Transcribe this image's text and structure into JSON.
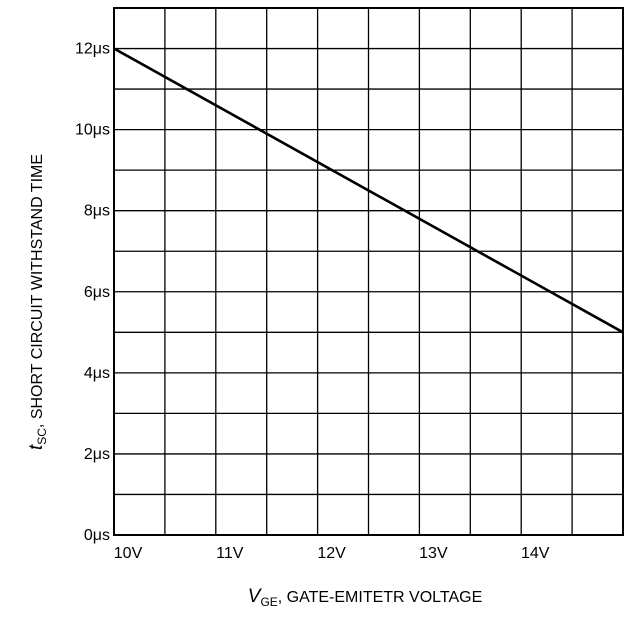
{
  "chart_data": {
    "type": "line",
    "x_tick_labels": [
      "10V",
      "11V",
      "12V",
      "13V",
      "14V"
    ],
    "y_tick_labels": [
      "0μs",
      "2μs",
      "4μs",
      "6μs",
      "8μs",
      "10μs",
      "12μs"
    ],
    "xlabel": {
      "symbol": "V",
      "subscript": "GE",
      "text": ", GATE-EMITETR VOLTAGE"
    },
    "ylabel": {
      "symbol": "t",
      "subscript": "SC",
      "text": ",  SHORT CIRCUIT WITHSTAND TIME"
    },
    "xlim": [
      10,
      15
    ],
    "ylim": [
      0,
      13
    ],
    "x_grid_step": 0.5,
    "y_grid_step": 1,
    "x_tick_values": [
      10,
      11,
      12,
      13,
      14
    ],
    "y_tick_values": [
      0,
      2,
      4,
      6,
      8,
      10,
      12
    ],
    "grid": true,
    "line_color": "#000000",
    "series": [
      {
        "x": [
          10,
          15
        ],
        "y": [
          12,
          5
        ]
      }
    ]
  }
}
